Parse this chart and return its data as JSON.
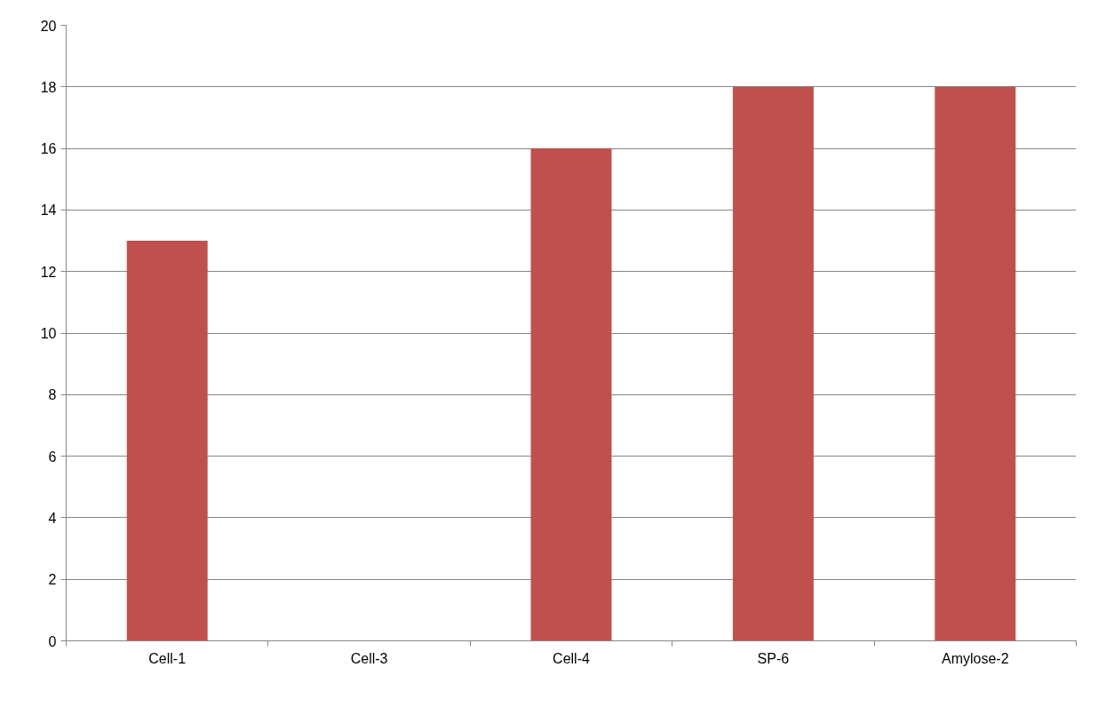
{
  "chart_data": {
    "type": "bar",
    "categories": [
      "Cell-1",
      "Cell-3",
      "Cell-4",
      "SP-6",
      "Amylose-2"
    ],
    "values": [
      13,
      0,
      16,
      18,
      18
    ],
    "color": "#c0504d",
    "ylim": [
      0,
      20
    ],
    "yticks": [
      0,
      2,
      4,
      6,
      8,
      10,
      12,
      14,
      16,
      18,
      20
    ],
    "grid": "y"
  }
}
